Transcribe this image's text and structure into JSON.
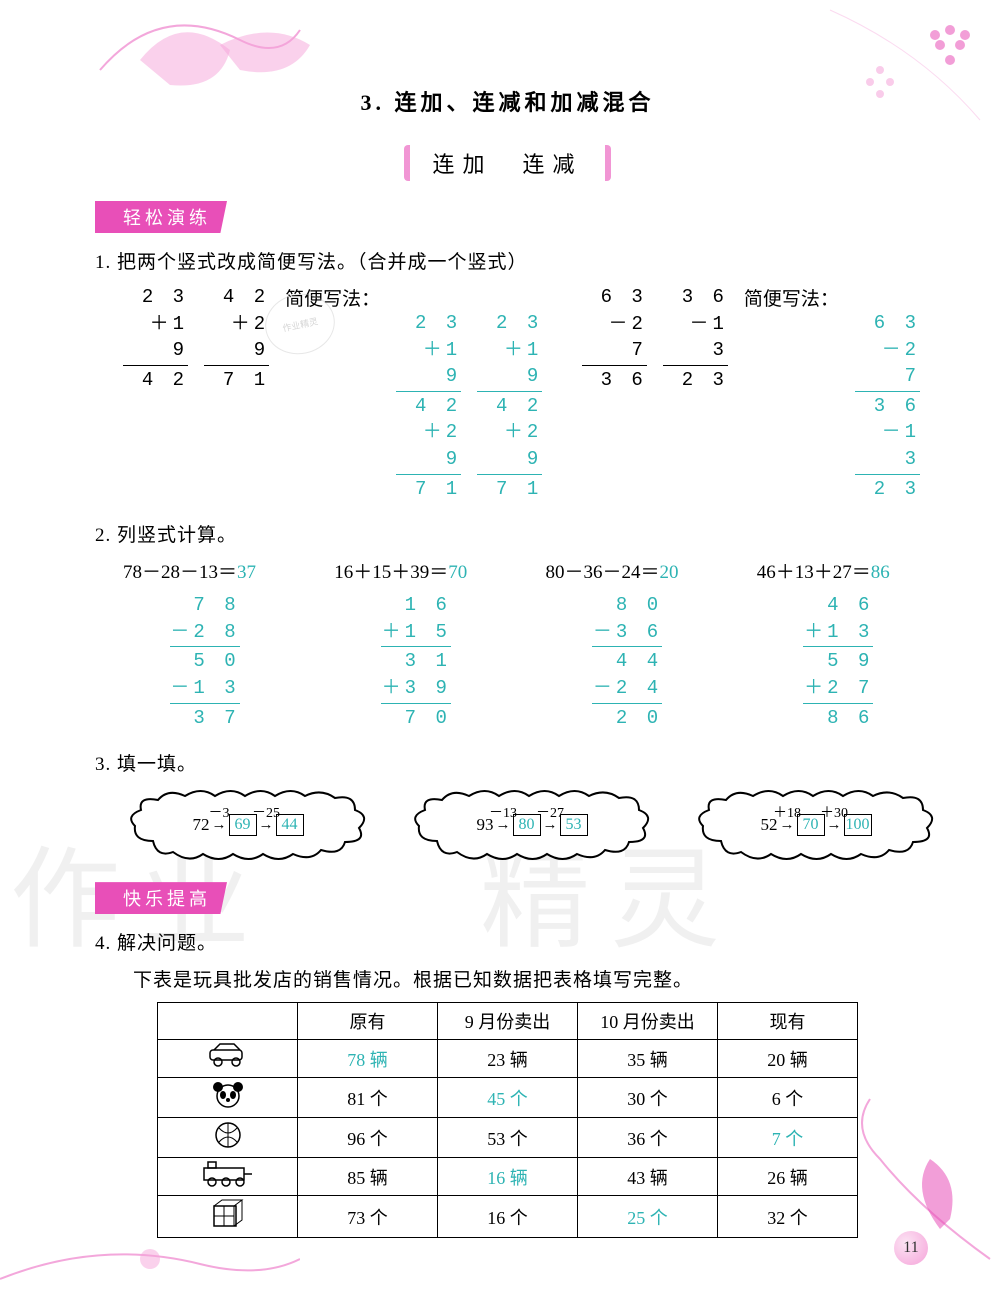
{
  "colors": {
    "accent": "#e84fb8",
    "answer": "#2db3b3",
    "text": "#000000",
    "bg": "#ffffff"
  },
  "title": "3. 连加、连减和加减混合",
  "subtitle": "连加　连减",
  "banner1": "轻松演练",
  "banner2": "快乐提高",
  "q1": {
    "text": "1. 把两个竖式改成简便写法。（合并成一个竖式）",
    "label": "简便写法：",
    "left": {
      "a": [
        "2 3",
        "＋1 9",
        "4 2"
      ],
      "b": [
        "4 2",
        "＋2 9",
        "7 1"
      ],
      "ansA": [
        "2 3",
        "＋1 9",
        "4 2",
        "＋2 9",
        "7 1"
      ],
      "ansB": [
        "2 3",
        "＋1 9",
        "4 2",
        "＋2 9",
        "7 1"
      ]
    },
    "right": {
      "a": [
        "6 3",
        "－2 7",
        "3 6"
      ],
      "b": [
        "3 6",
        "－1 3",
        "2 3"
      ],
      "ans": [
        "6 3",
        "－2 7",
        "3 6",
        "－1 3",
        "2 3"
      ]
    }
  },
  "q2": {
    "text": "2. 列竖式计算。",
    "items": [
      {
        "eq": "78－28－13＝",
        "ans": "37",
        "work": [
          "7 8",
          "－2 8",
          "5 0",
          "－1 3",
          "3 7"
        ]
      },
      {
        "eq": "16＋15＋39＝",
        "ans": "70",
        "work": [
          "1 6",
          "＋1 5",
          "3 1",
          "＋3 9",
          "7 0"
        ]
      },
      {
        "eq": "80－36－24＝",
        "ans": "20",
        "work": [
          "8 0",
          "－3 6",
          "4 4",
          "－2 4",
          "2 0"
        ]
      },
      {
        "eq": "46＋13＋27＝",
        "ans": "86",
        "work": [
          "4 6",
          "＋1 3",
          "5 9",
          "＋2 7",
          "8 6"
        ]
      }
    ]
  },
  "q3": {
    "text": "3. 填一填。",
    "items": [
      {
        "start": "72",
        "op1": "－3",
        "a1": "69",
        "op2": "－25",
        "a2": "44"
      },
      {
        "start": "93",
        "op1": "－13",
        "a1": "80",
        "op2": "－27",
        "a2": "53"
      },
      {
        "start": "52",
        "op1": "＋18",
        "a1": "70",
        "op2": "＋30",
        "a2": "100"
      }
    ]
  },
  "q4": {
    "text": "4. 解决问题。",
    "desc": "下表是玩具批发店的销售情况。根据已知数据把表格填写完整。",
    "headers": [
      "",
      "原有",
      "9 月份卖出",
      "10 月份卖出",
      "现有"
    ],
    "rows": [
      {
        "icon": "car",
        "cells": [
          {
            "v": "78 辆",
            "ans": true
          },
          {
            "v": "23 辆"
          },
          {
            "v": "35 辆"
          },
          {
            "v": "20 辆"
          }
        ]
      },
      {
        "icon": "panda",
        "cells": [
          {
            "v": "81 个"
          },
          {
            "v": "45 个",
            "ans": true
          },
          {
            "v": "30 个"
          },
          {
            "v": "6 个"
          }
        ]
      },
      {
        "icon": "ball",
        "cells": [
          {
            "v": "96 个"
          },
          {
            "v": "53 个"
          },
          {
            "v": "36 个"
          },
          {
            "v": "7 个",
            "ans": true
          }
        ]
      },
      {
        "icon": "train",
        "cells": [
          {
            "v": "85 辆"
          },
          {
            "v": "16 辆",
            "ans": true
          },
          {
            "v": "43 辆"
          },
          {
            "v": "26 辆"
          }
        ]
      },
      {
        "icon": "cube",
        "cells": [
          {
            "v": "73 个"
          },
          {
            "v": "16 个"
          },
          {
            "v": "25 个",
            "ans": true
          },
          {
            "v": "32 个"
          }
        ]
      }
    ]
  },
  "watermark": {
    "a": "作业",
    "b": "精灵"
  },
  "pagenum": "11",
  "stamp": "作业精灵"
}
